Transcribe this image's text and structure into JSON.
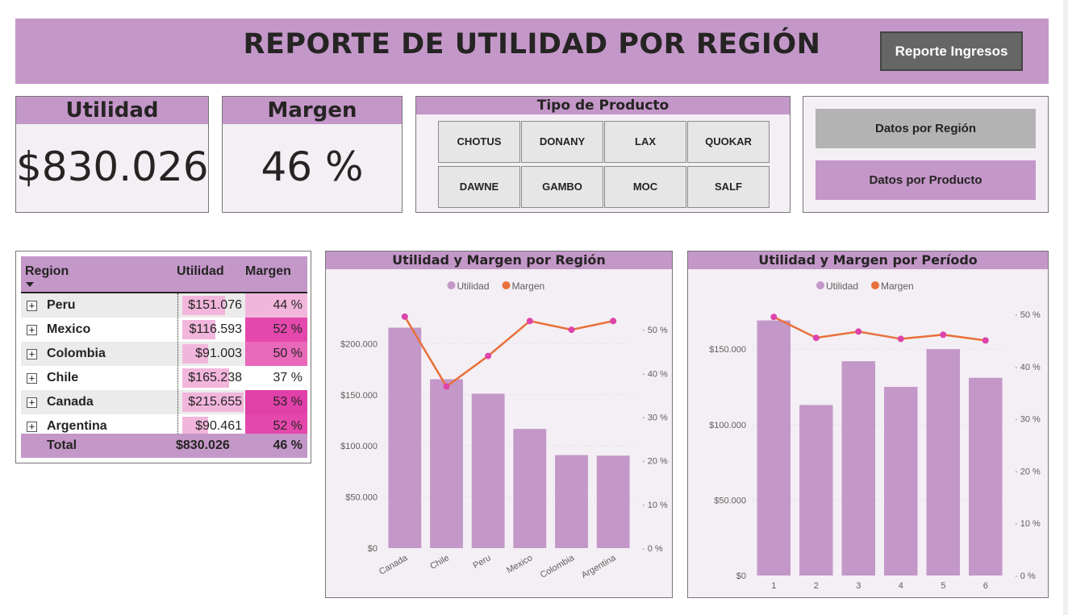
{
  "header": {
    "title": "REPORTE DE UTILIDAD POR REGIÓN",
    "report_button": "Reporte Ingresos"
  },
  "kpis": {
    "utilidad": {
      "label": "Utilidad",
      "value": "$830.026"
    },
    "margen": {
      "label": "Margen",
      "value": "46 %"
    }
  },
  "slicer": {
    "title": "Tipo de Producto",
    "items": [
      "CHOTUS",
      "DONANY",
      "LAX",
      "QUOKAR",
      "DAWNE",
      "GAMBO",
      "MOC",
      "SALF"
    ]
  },
  "nav": {
    "by_region": "Datos por Región",
    "by_product": "Datos por Producto"
  },
  "matrix": {
    "headers": {
      "region": "Region",
      "utilidad": "Utilidad",
      "margen": "Margen"
    },
    "rows": [
      {
        "region": "Peru",
        "utilidad": "$151.076",
        "margen": "44 %",
        "utilidad_value": 151076,
        "margen_value": 44
      },
      {
        "region": "Mexico",
        "utilidad": "$116.593",
        "margen": "52 %",
        "utilidad_value": 116593,
        "margen_value": 52
      },
      {
        "region": "Colombia",
        "utilidad": "$91.003",
        "margen": "50 %",
        "utilidad_value": 91003,
        "margen_value": 50
      },
      {
        "region": "Chile",
        "utilidad": "$165.238",
        "margen": "37 %",
        "utilidad_value": 165238,
        "margen_value": 37
      },
      {
        "region": "Canada",
        "utilidad": "$215.655",
        "margen": "53 %",
        "utilidad_value": 215655,
        "margen_value": 53
      },
      {
        "region": "Argentina",
        "utilidad": "$90.461",
        "margen": "52 %",
        "utilidad_value": 90461,
        "margen_value": 52
      }
    ],
    "total": {
      "label": "Total",
      "utilidad": "$830.026",
      "margen": "46 %"
    }
  },
  "colors": {
    "accent": "#c497c9",
    "card_bg": "#f3eff4",
    "line": "#e8703a",
    "marker": "#dd44aa",
    "bar": "#c497c9"
  },
  "chart_data": [
    {
      "type": "bar",
      "title": "Utilidad y Margen por Región",
      "categories": [
        "Canada",
        "Chile",
        "Peru",
        "Mexico",
        "Colombia",
        "Argentina"
      ],
      "series": [
        {
          "name": "Utilidad",
          "values": [
            215655,
            165238,
            151076,
            116593,
            91003,
            90461
          ],
          "axis": "left",
          "kind": "bar"
        },
        {
          "name": "Margen",
          "values": [
            53,
            37,
            44,
            52,
            50,
            52
          ],
          "axis": "right",
          "kind": "line"
        }
      ],
      "y_left_ticks": [
        "$0",
        "$50.000",
        "$100.000",
        "$150.000",
        "$200.000"
      ],
      "y_left_ylim": [
        0,
        235000
      ],
      "y_right_ticks": [
        "0 %",
        "10 %",
        "20 %",
        "30 %",
        "40 %",
        "50 %"
      ],
      "y_right_ylim": [
        0,
        55
      ],
      "legend_position": "top-center",
      "grid": true
    },
    {
      "type": "bar",
      "title": "Utilidad y Margen por Período",
      "categories": [
        "1",
        "2",
        "3",
        "4",
        "5",
        "6"
      ],
      "series": [
        {
          "name": "Utilidad",
          "values": [
            169000,
            113000,
            142000,
            125000,
            150000,
            131000
          ],
          "axis": "left",
          "kind": "bar"
        },
        {
          "name": "Margen",
          "values": [
            49.5,
            45.5,
            46.7,
            45.3,
            46.1,
            45
          ],
          "axis": "right",
          "kind": "line"
        }
      ],
      "y_left_ticks": [
        "$0",
        "$50.000",
        "$100.000",
        "$150.000"
      ],
      "y_left_ylim": [
        0,
        180000
      ],
      "y_right_ticks": [
        "0 %",
        "10 %",
        "20 %",
        "30 %",
        "40 %",
        "50 %"
      ],
      "y_right_ylim": [
        0,
        52
      ],
      "legend_position": "top-center",
      "grid": true
    }
  ]
}
